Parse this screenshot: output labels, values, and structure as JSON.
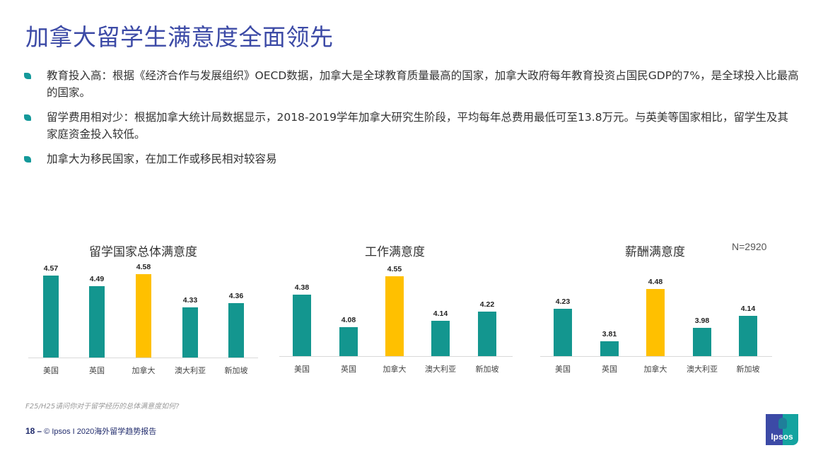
{
  "title": "加拿大留学生满意度全面领先",
  "bullets": [
    {
      "text": "教育投入高：根据《经济合作与发展组织》OECD数据，加拿大是全球教育质量最高的国家，加拿大政府每年教育投资占国民GDP的7%，是全球投入比最高的国家。"
    },
    {
      "text": "留学费用相对少：根据加拿大统计局数据显示，2018-2019学年加拿大研究生阶段，平均每年总费用最低可至13.8万元。与英美等国家相比，留学生及其家庭资金投入较低。"
    },
    {
      "text": "加拿大为移民国家，在加工作或移民相对较容易"
    }
  ],
  "colors": {
    "teal": "#13968f",
    "highlight": "#ffc000",
    "title": "#3c4aa6"
  },
  "sample_size": "N=2920",
  "chart_data": [
    {
      "type": "bar",
      "title": "留学国家总体满意度",
      "categories": [
        "美国",
        "英国",
        "加拿大",
        "澳大利亚",
        "新加坡"
      ],
      "values": [
        4.57,
        4.49,
        4.58,
        4.33,
        4.36
      ],
      "value_labels": [
        "4.57",
        "4.49",
        "4.58",
        "4.33",
        "4.36"
      ],
      "highlight_index": 2,
      "xlabel": "",
      "ylabel": "",
      "grid": false,
      "legend": "none"
    },
    {
      "type": "bar",
      "title": "工作满意度",
      "categories": [
        "美国",
        "英国",
        "加拿大",
        "澳大利亚",
        "新加坡"
      ],
      "values": [
        4.38,
        4.08,
        4.55,
        4.14,
        4.22
      ],
      "value_labels": [
        "4.38",
        "4.08",
        "4.55",
        "4.14",
        "4.22"
      ],
      "highlight_index": 2,
      "xlabel": "",
      "ylabel": "",
      "grid": false,
      "legend": "none"
    },
    {
      "type": "bar",
      "title": "薪酬满意度",
      "categories": [
        "美国",
        "英国",
        "加拿大",
        "澳大利亚",
        "新加坡"
      ],
      "values": [
        4.23,
        3.81,
        4.48,
        3.98,
        4.14
      ],
      "value_labels": [
        "4.23",
        "3.81",
        "4.48",
        "3.98",
        "4.14"
      ],
      "highlight_index": 2,
      "xlabel": "",
      "ylabel": "",
      "grid": false,
      "legend": "none"
    }
  ],
  "footnote": "F25/H25请问你对于留学经历的总体满意度如何?",
  "footer": {
    "page": "18",
    "dash": "–",
    "text": "© Ipsos I 2020海外留学趋势报告"
  },
  "logo": {
    "text": "Ipsos"
  }
}
